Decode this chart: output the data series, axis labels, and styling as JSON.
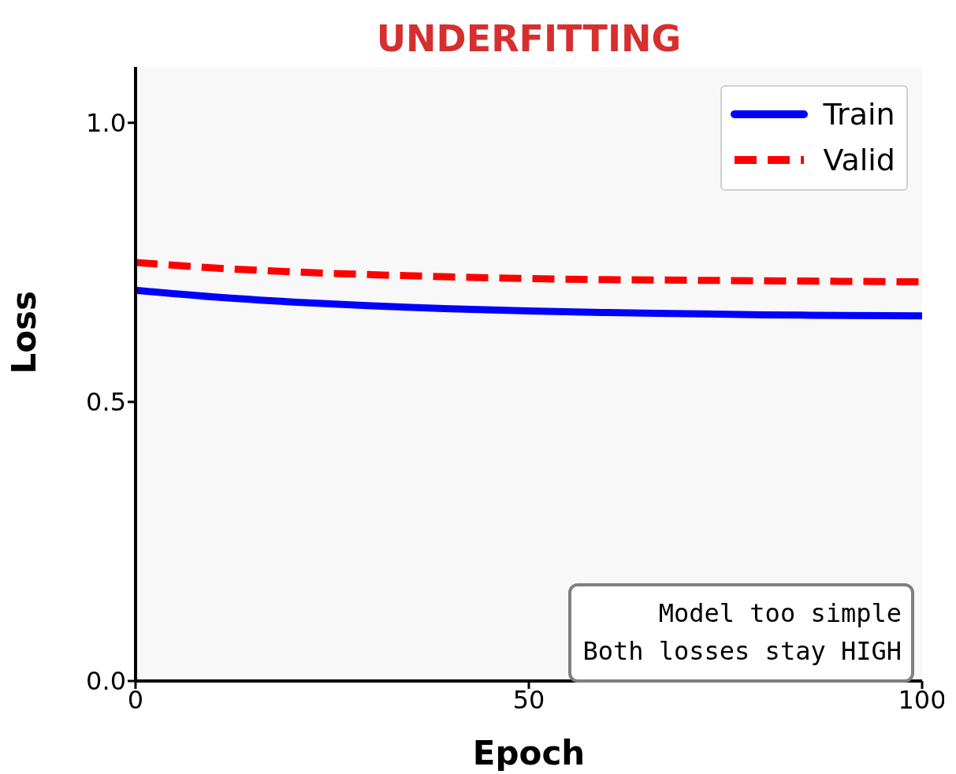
{
  "chart_data": {
    "type": "line",
    "title": "UNDERFITTING",
    "xlabel": "Epoch",
    "ylabel": "Loss",
    "x": [
      0,
      10,
      20,
      30,
      40,
      50,
      60,
      70,
      80,
      90,
      100
    ],
    "series": [
      {
        "name": "Train",
        "color": "#0000ff",
        "line_style": "solid",
        "values": [
          0.7,
          0.688,
          0.679,
          0.672,
          0.667,
          0.663,
          0.66,
          0.658,
          0.656,
          0.655,
          0.654
        ]
      },
      {
        "name": "Valid",
        "color": "#ff0000",
        "line_style": "dashed",
        "values": [
          0.75,
          0.74,
          0.733,
          0.728,
          0.724,
          0.721,
          0.719,
          0.718,
          0.717,
          0.716,
          0.715
        ]
      }
    ],
    "xlim": [
      0,
      100
    ],
    "xticks": [
      0,
      50,
      100
    ],
    "ylim": [
      0,
      1.1
    ],
    "yticks": [
      {
        "value": 0,
        "label": "0.0"
      },
      {
        "value": 0.5,
        "label": "0.5"
      },
      {
        "value": 1,
        "label": "1.0"
      }
    ],
    "grid": false,
    "legend": "top right",
    "marker": "none",
    "annotations": [
      "Model too simple\nBoth losses stay HIGH"
    ]
  }
}
